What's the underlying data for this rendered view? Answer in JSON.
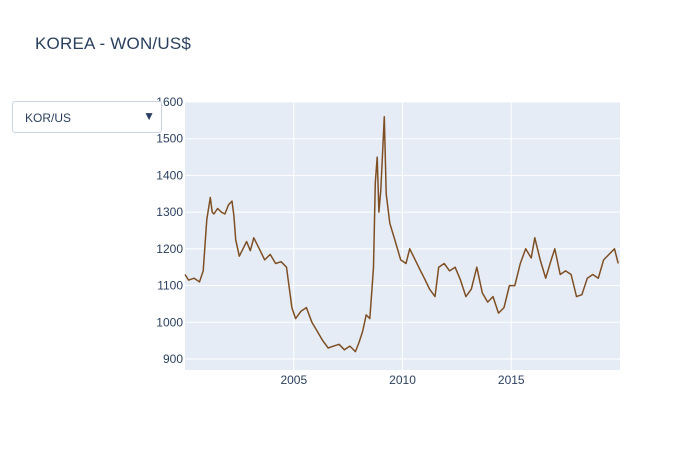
{
  "title": "KOREA - WON/US$",
  "dropdown": {
    "selected": "KOR/US",
    "arrow_icon": "triangle-down-icon"
  },
  "colors": {
    "plot_bg": "#e5ecf6",
    "grid": "#ffffff",
    "line": "#7f4f24",
    "text": "#2a3f5f"
  },
  "chart_data": {
    "type": "line",
    "title": "KOREA - WON/US$",
    "xlabel": "",
    "ylabel": "",
    "x_ticks": [
      "2005",
      "2010",
      "2015"
    ],
    "y_ticks": [
      "900",
      "1000",
      "1100",
      "1200",
      "1300",
      "1400",
      "1500",
      "1600"
    ],
    "xlim": [
      "2000-01-01",
      "2020-01-01"
    ],
    "ylim": [
      870,
      1600
    ],
    "grid": true,
    "series": [
      {
        "x": [
          "2000-01",
          "2000-03",
          "2000-06",
          "2000-09",
          "2000-11",
          "2001-01",
          "2001-03",
          "2001-04",
          "2001-05",
          "2001-07",
          "2001-09",
          "2001-11",
          "2002-01",
          "2002-03",
          "2002-04",
          "2002-05",
          "2002-07",
          "2002-09",
          "2002-11",
          "2003-01",
          "2003-03",
          "2003-06",
          "2003-09",
          "2003-12",
          "2004-03",
          "2004-06",
          "2004-09",
          "2004-12",
          "2005-02",
          "2005-05",
          "2005-08",
          "2005-11",
          "2006-02",
          "2006-05",
          "2006-08",
          "2006-11",
          "2007-02",
          "2007-05",
          "2007-08",
          "2007-11",
          "2008-01",
          "2008-03",
          "2008-05",
          "2008-07",
          "2008-08",
          "2008-09",
          "2008-10",
          "2008-11",
          "2008-12",
          "2009-01",
          "2009-03",
          "2009-04",
          "2009-06",
          "2009-09",
          "2009-12",
          "2010-03",
          "2010-05",
          "2010-08",
          "2010-11",
          "2011-01",
          "2011-04",
          "2011-07",
          "2011-09",
          "2011-12",
          "2012-03",
          "2012-06",
          "2012-09",
          "2012-12",
          "2013-03",
          "2013-06",
          "2013-09",
          "2013-12",
          "2014-03",
          "2014-06",
          "2014-09",
          "2014-12",
          "2015-03",
          "2015-06",
          "2015-09",
          "2015-12",
          "2016-02",
          "2016-05",
          "2016-08",
          "2016-11",
          "2017-01",
          "2017-04",
          "2017-07",
          "2017-10",
          "2018-01",
          "2018-04",
          "2018-07",
          "2018-10",
          "2019-01",
          "2019-04",
          "2019-07",
          "2019-10",
          "2019-12"
        ],
        "y": [
          1130,
          1115,
          1120,
          1110,
          1140,
          1280,
          1340,
          1300,
          1295,
          1310,
          1300,
          1295,
          1320,
          1330,
          1290,
          1225,
          1180,
          1200,
          1220,
          1195,
          1230,
          1200,
          1170,
          1185,
          1160,
          1165,
          1150,
          1040,
          1010,
          1030,
          1040,
          1000,
          975,
          950,
          930,
          935,
          940,
          925,
          935,
          920,
          945,
          975,
          1020,
          1010,
          1080,
          1150,
          1380,
          1450,
          1300,
          1360,
          1560,
          1350,
          1270,
          1220,
          1170,
          1160,
          1200,
          1170,
          1140,
          1120,
          1090,
          1070,
          1150,
          1160,
          1140,
          1150,
          1115,
          1070,
          1090,
          1150,
          1080,
          1055,
          1070,
          1025,
          1040,
          1100,
          1100,
          1160,
          1200,
          1175,
          1230,
          1170,
          1120,
          1170,
          1200,
          1130,
          1140,
          1130,
          1070,
          1075,
          1120,
          1130,
          1120,
          1170,
          1185,
          1200,
          1160
        ]
      }
    ]
  }
}
